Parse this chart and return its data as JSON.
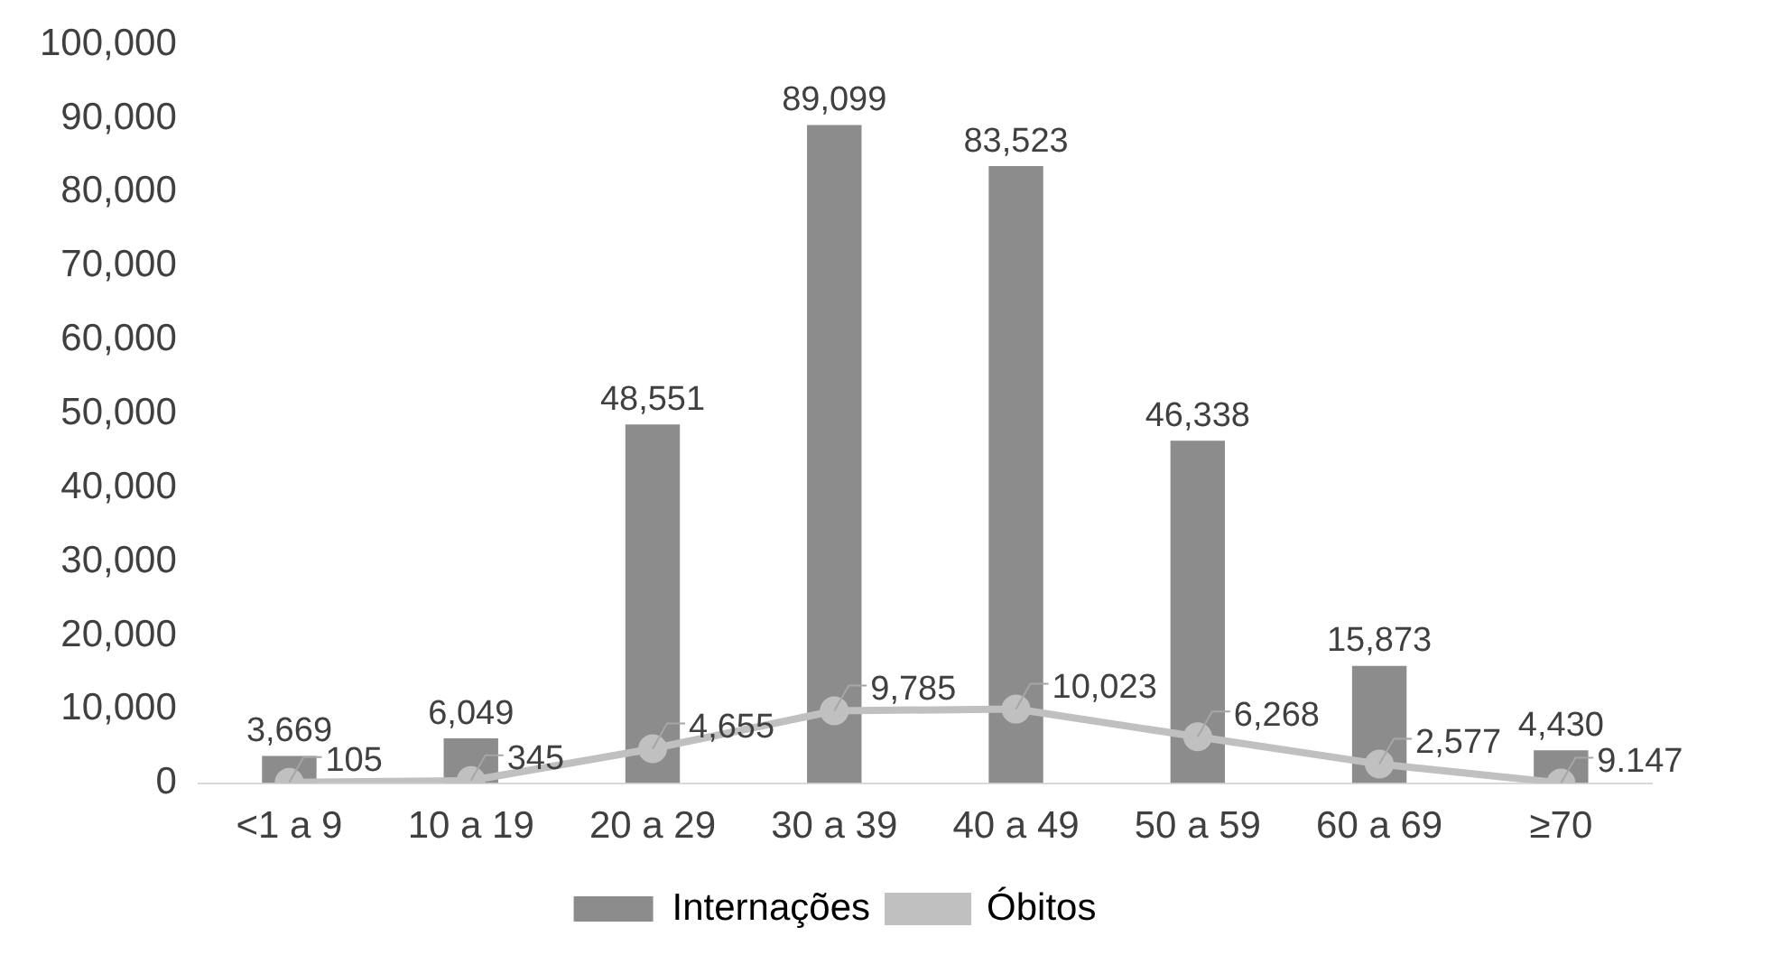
{
  "chart_data": {
    "type": "bar",
    "categories": [
      "<1 a 9",
      "10 a 19",
      "20 a 29",
      "30 a 39",
      "40 a 49",
      "50 a 59",
      "60 a 69",
      "≥70"
    ],
    "series": [
      {
        "name": "Internações",
        "color": "#8c8c8c",
        "values": [
          3669,
          6049,
          48551,
          89099,
          83523,
          46338,
          15873,
          4430
        ],
        "value_labels": [
          "3,669",
          "6,049",
          "48,551",
          "89,099",
          "83,523",
          "46,338",
          "15,873",
          "4,430"
        ]
      },
      {
        "name": "Óbitos",
        "type": "line",
        "color": "#c0c0c0",
        "marker": "circle",
        "values": [
          105,
          345,
          4655,
          9785,
          10023,
          6268,
          2577,
          9.147
        ],
        "value_labels": [
          "105",
          "345",
          "4,655",
          "9,785",
          "10,023",
          "6,268",
          "2,577",
          "9.147"
        ]
      }
    ],
    "ylim": [
      0,
      100000
    ],
    "yticks": [
      {
        "value": 0,
        "label": "0"
      },
      {
        "value": 10000,
        "label": "10,000"
      },
      {
        "value": 20000,
        "label": "20,000"
      },
      {
        "value": 30000,
        "label": "30,000"
      },
      {
        "value": 40000,
        "label": "40,000"
      },
      {
        "value": 50000,
        "label": "50,000"
      },
      {
        "value": 60000,
        "label": "60,000"
      },
      {
        "value": 70000,
        "label": "70,000"
      },
      {
        "value": 80000,
        "label": "80,000"
      },
      {
        "value": 90000,
        "label": "90,000"
      },
      {
        "value": 100000,
        "label": "100,000"
      }
    ],
    "grid": false,
    "legend": "bottom"
  }
}
